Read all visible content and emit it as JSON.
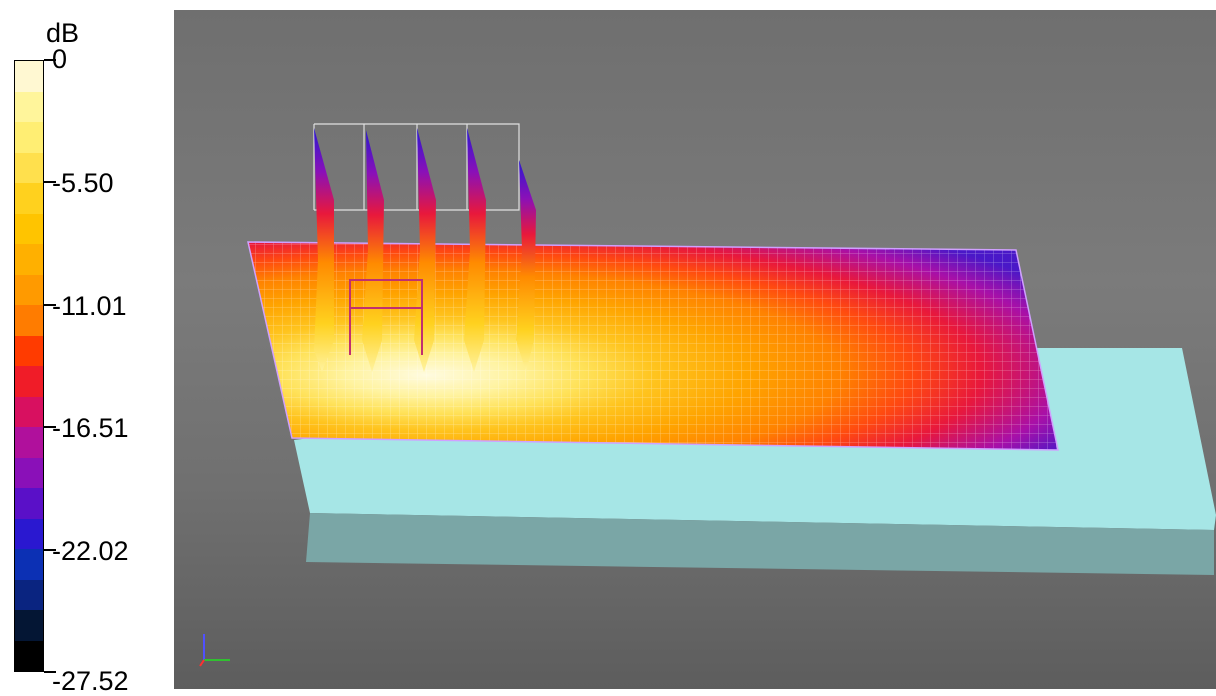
{
  "legend": {
    "unit": "dB",
    "ticks": [
      "0",
      "-5.50",
      "-11.01",
      "-16.51",
      "-22.02",
      "-27.52"
    ],
    "colors": [
      "#fff8d2",
      "#fff59b",
      "#ffee73",
      "#ffe04d",
      "#ffd11e",
      "#ffc400",
      "#ffb000",
      "#ff9a00",
      "#ff7c00",
      "#ff3b00",
      "#f01c28",
      "#d81060",
      "#b0109c",
      "#8a10b8",
      "#5a10c8",
      "#2a18d0",
      "#0c30b4",
      "#0a2480",
      "#041634",
      "#000000"
    ]
  },
  "viewport": {
    "background": "#707070",
    "slab_color": "#a6e6e6",
    "slab_side_color": "#7aa6a6",
    "field_colors": {
      "hot": "#fff8d2",
      "warm": "#ffe04d",
      "mid": "#ffa000",
      "edge": "#ff5000",
      "cold": "#e01846",
      "cooler": "#9010b0",
      "coldest": "#3020c8"
    },
    "axis_icon": "axis-triad-icon"
  }
}
